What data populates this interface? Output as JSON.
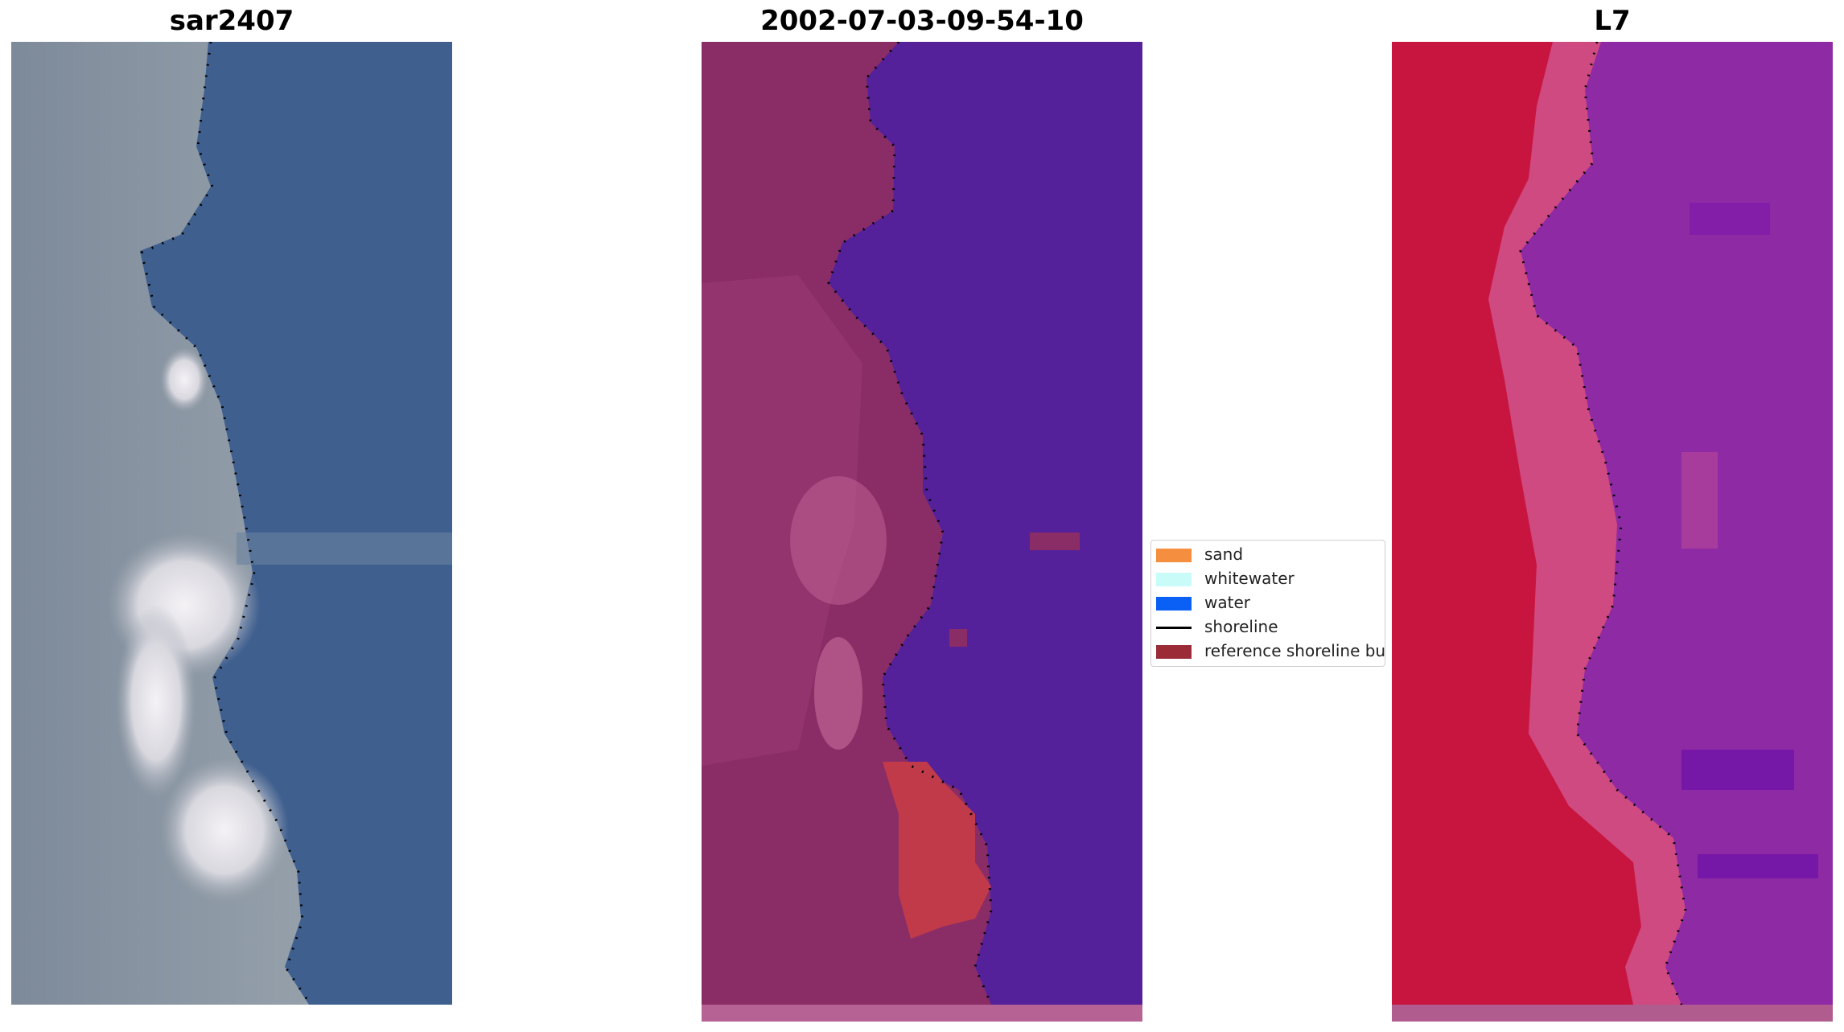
{
  "panels": [
    {
      "title": "sar2407"
    },
    {
      "title": "2002-07-03-09-54-10"
    },
    {
      "title": "L7"
    }
  ],
  "legend": {
    "items": [
      {
        "label": "sand",
        "kind": "patch",
        "color": "#f58e3e"
      },
      {
        "label": "whitewater",
        "kind": "patch",
        "color": "#c9fbf9"
      },
      {
        "label": "water",
        "kind": "patch",
        "color": "#0a5ff5"
      },
      {
        "label": "shoreline",
        "kind": "line",
        "color": "#000000"
      },
      {
        "label": "reference shoreline buffer",
        "kind": "patch",
        "color": "#9b2c37"
      }
    ]
  },
  "colors": {
    "rgb_water": "#3e5f8e",
    "rgb_land": "#8a95a2",
    "rgb_bright_sand": "#e8e6ea",
    "classified_water": "#54219a",
    "classified_land": "#8a2d66",
    "classified_sand_overlay": "#c03a4a",
    "classified_bottom_strip": "#b66295",
    "falsecolor_land": "#c81540",
    "falsecolor_water": "#8f2aa5",
    "falsecolor_beach": "#cf4a80",
    "falsecolor_bottom_strip": "#b05c8e"
  }
}
